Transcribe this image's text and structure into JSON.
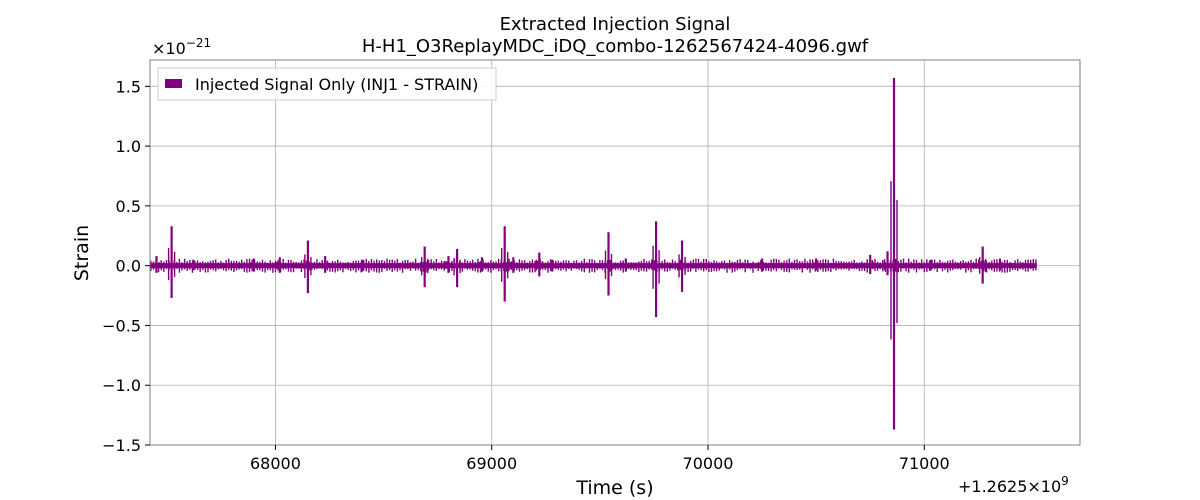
{
  "chart_data": {
    "type": "line",
    "title": "Extracted Injection Signal",
    "subtitle": "H-H1_O3ReplayMDC_iDQ_combo-1262567424-4096.gwf",
    "xlabel": "Time (s)",
    "ylabel": "Strain",
    "x_offset_label": "+1.2625×10",
    "x_offset_exponent": "9",
    "y_scale_label": "×10",
    "y_scale_exponent": "−21",
    "xlim": [
      67420,
      71720
    ],
    "ylim": [
      -1.5,
      1.72
    ],
    "xticks": [
      68000,
      69000,
      70000,
      71000
    ],
    "xtick_labels": [
      "68000",
      "69000",
      "70000",
      "71000"
    ],
    "yticks": [
      -1.5,
      -1.0,
      -0.5,
      0.0,
      0.5,
      1.0,
      1.5
    ],
    "ytick_labels": [
      "−1.5",
      "−1.0",
      "−0.5",
      "0.0",
      "0.5",
      "1.0",
      "1.5"
    ],
    "grid": true,
    "legend_position": "top-left",
    "data_range": [
      67424,
      71520
    ],
    "baseline_amplitude": 0.03,
    "series": [
      {
        "name": "Injected Signal Only (INJ1 - STRAIN)",
        "color": "#800080",
        "spikes": [
          {
            "x": 67450,
            "high": 0.08,
            "low": -0.06
          },
          {
            "x": 67520,
            "high": 0.33,
            "low": -0.27
          },
          {
            "x": 67620,
            "high": 0.05,
            "low": -0.04
          },
          {
            "x": 67900,
            "high": 0.06,
            "low": -0.05
          },
          {
            "x": 68020,
            "high": 0.07,
            "low": -0.06
          },
          {
            "x": 68150,
            "high": 0.21,
            "low": -0.23
          },
          {
            "x": 68230,
            "high": 0.08,
            "low": -0.06
          },
          {
            "x": 68400,
            "high": 0.05,
            "low": -0.05
          },
          {
            "x": 68690,
            "high": 0.16,
            "low": -0.18
          },
          {
            "x": 68800,
            "high": 0.08,
            "low": -0.06
          },
          {
            "x": 68840,
            "high": 0.14,
            "low": -0.18
          },
          {
            "x": 68955,
            "high": 0.07,
            "low": -0.05
          },
          {
            "x": 69060,
            "high": 0.33,
            "low": -0.3
          },
          {
            "x": 69100,
            "high": 0.07,
            "low": -0.06
          },
          {
            "x": 69220,
            "high": 0.11,
            "low": -0.09
          },
          {
            "x": 69280,
            "high": 0.05,
            "low": -0.05
          },
          {
            "x": 69540,
            "high": 0.28,
            "low": -0.25
          },
          {
            "x": 69620,
            "high": 0.06,
            "low": -0.05
          },
          {
            "x": 69760,
            "high": 0.37,
            "low": -0.43
          },
          {
            "x": 69880,
            "high": 0.21,
            "low": -0.22
          },
          {
            "x": 70250,
            "high": 0.06,
            "low": -0.05
          },
          {
            "x": 70500,
            "high": 0.06,
            "low": -0.04
          },
          {
            "x": 70750,
            "high": 0.09,
            "low": -0.07
          },
          {
            "x": 70830,
            "high": 0.12,
            "low": -0.08
          },
          {
            "x": 70860,
            "high": 1.57,
            "low": -1.37
          },
          {
            "x": 71030,
            "high": 0.05,
            "low": -0.04
          },
          {
            "x": 71270,
            "high": 0.16,
            "low": -0.15
          },
          {
            "x": 71350,
            "high": 0.06,
            "low": -0.04
          }
        ]
      }
    ]
  }
}
